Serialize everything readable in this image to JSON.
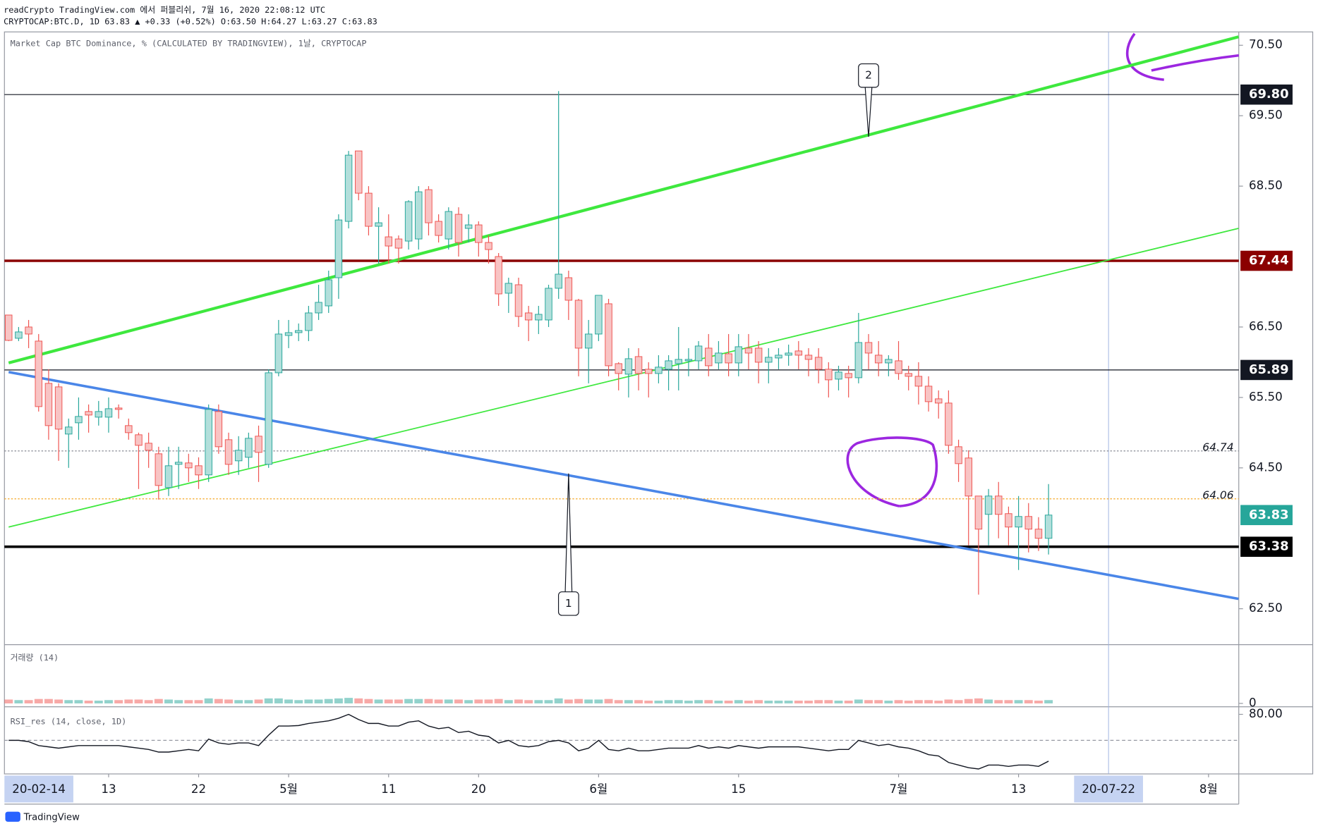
{
  "header": {
    "published": "readCrypto TradingView.com 에서 퍼블리쉬, 7월 16, 2020 22:08:12 UTC",
    "symbol": "CRYPTOCAP:BTC.D, 1D 63.83 ▲ +0.33 (+0.52%) O:63.50 H:64.27 L:63.27 C:63.83"
  },
  "footer": "TradingView",
  "chart_data": [
    {
      "type": "candlestick",
      "title": "Market Cap BTC Dominance, % (CALCULATED BY TRADINGVIEW), 1날, CRYPTOCAP",
      "x": [
        "2020-04-03",
        "2020-04-04",
        "2020-04-05",
        "2020-04-06",
        "2020-04-07",
        "2020-04-08",
        "2020-04-09",
        "2020-04-10",
        "2020-04-11",
        "2020-04-12",
        "2020-04-13",
        "2020-04-14",
        "2020-04-15",
        "2020-04-16",
        "2020-04-17",
        "2020-04-18",
        "2020-04-19",
        "2020-04-20",
        "2020-04-21",
        "2020-04-22",
        "2020-04-23",
        "2020-04-24",
        "2020-04-25",
        "2020-04-26",
        "2020-04-27",
        "2020-04-28",
        "2020-04-29",
        "2020-04-30",
        "2020-05-01",
        "2020-05-02",
        "2020-05-03",
        "2020-05-04",
        "2020-05-05",
        "2020-05-06",
        "2020-05-07",
        "2020-05-08",
        "2020-05-09",
        "2020-05-10",
        "2020-05-11",
        "2020-05-12",
        "2020-05-13",
        "2020-05-14",
        "2020-05-15",
        "2020-05-16",
        "2020-05-17",
        "2020-05-18",
        "2020-05-19",
        "2020-05-20",
        "2020-05-21",
        "2020-05-22",
        "2020-05-23",
        "2020-05-24",
        "2020-05-25",
        "2020-05-26",
        "2020-05-27",
        "2020-05-28",
        "2020-05-29",
        "2020-05-30",
        "2020-05-31",
        "2020-06-01",
        "2020-06-02",
        "2020-06-03",
        "2020-06-04",
        "2020-06-05",
        "2020-06-06",
        "2020-06-07",
        "2020-06-08",
        "2020-06-09",
        "2020-06-10",
        "2020-06-11",
        "2020-06-12",
        "2020-06-13",
        "2020-06-14",
        "2020-06-15",
        "2020-06-16",
        "2020-06-17",
        "2020-06-18",
        "2020-06-19",
        "2020-06-20",
        "2020-06-21",
        "2020-06-22",
        "2020-06-23",
        "2020-06-24",
        "2020-06-25",
        "2020-06-26",
        "2020-06-27",
        "2020-06-28",
        "2020-06-29",
        "2020-06-30",
        "2020-07-01",
        "2020-07-02",
        "2020-07-03",
        "2020-07-04",
        "2020-07-05",
        "2020-07-06",
        "2020-07-07",
        "2020-07-08",
        "2020-07-09",
        "2020-07-10",
        "2020-07-11",
        "2020-07-12",
        "2020-07-13",
        "2020-07-14",
        "2020-07-15",
        "2020-07-16"
      ],
      "open": [
        66.67,
        66.34,
        66.5,
        66.3,
        65.7,
        65.65,
        64.98,
        65.14,
        65.3,
        65.22,
        65.22,
        65.35,
        65.1,
        64.97,
        64.85,
        64.7,
        64.22,
        64.55,
        64.57,
        64.53,
        64.4,
        65.3,
        64.9,
        64.6,
        64.65,
        64.95,
        64.55,
        65.85,
        66.38,
        66.42,
        66.45,
        66.7,
        66.8,
        67.2,
        68.0,
        69.0,
        68.4,
        67.93,
        67.78,
        67.75,
        67.72,
        67.75,
        68.45,
        68.0,
        67.75,
        68.1,
        67.9,
        67.95,
        67.7,
        67.5,
        66.98,
        67.1,
        66.7,
        66.6,
        66.6,
        67.05,
        67.2,
        66.88,
        66.2,
        66.4,
        66.83,
        65.98,
        65.83,
        66.08,
        65.9,
        65.84,
        65.9,
        65.98,
        66.02,
        66.02,
        66.2,
        65.99,
        66.12,
        65.99,
        66.2,
        66.2,
        66.0,
        66.06,
        66.1,
        66.16,
        66.1,
        66.07,
        65.9,
        65.76,
        65.84,
        65.78,
        66.28,
        66.1,
        65.99,
        66.02,
        65.84,
        65.8,
        65.66,
        65.48,
        65.42,
        64.8,
        64.64,
        64.1,
        63.84,
        64.1,
        63.85,
        63.66,
        63.81,
        63.63,
        63.5
      ],
      "high": [
        66.67,
        66.5,
        66.6,
        66.4,
        65.9,
        65.7,
        65.2,
        65.5,
        65.4,
        65.45,
        65.5,
        65.4,
        65.2,
        65.0,
        65.0,
        64.8,
        64.8,
        64.8,
        64.7,
        64.65,
        65.4,
        65.4,
        65.0,
        64.95,
        65.0,
        65.1,
        65.9,
        66.6,
        66.6,
        66.55,
        66.8,
        67.1,
        67.3,
        68.1,
        69.0,
        69.0,
        68.5,
        68.2,
        68.1,
        67.8,
        68.3,
        68.5,
        68.5,
        68.1,
        68.2,
        68.2,
        68.1,
        68.0,
        67.8,
        67.55,
        67.2,
        67.2,
        66.8,
        66.8,
        67.1,
        69.85,
        67.3,
        66.9,
        66.6,
        66.95,
        66.9,
        66.0,
        66.2,
        66.2,
        66.0,
        66.1,
        66.1,
        66.5,
        66.2,
        66.3,
        66.4,
        66.3,
        66.4,
        66.4,
        66.4,
        66.3,
        66.2,
        66.2,
        66.25,
        66.3,
        66.2,
        66.2,
        66.0,
        65.95,
        65.95,
        66.7,
        66.4,
        66.3,
        66.1,
        66.3,
        65.95,
        66.0,
        65.8,
        65.6,
        65.6,
        64.9,
        64.75,
        64.1,
        64.2,
        64.3,
        63.95,
        64.1,
        64.0,
        63.8,
        64.27
      ],
      "low": [
        66.3,
        66.3,
        66.2,
        65.3,
        64.9,
        64.6,
        64.5,
        64.9,
        65.0,
        65.1,
        65.0,
        65.2,
        64.9,
        64.2,
        64.5,
        64.05,
        64.1,
        64.2,
        64.3,
        64.2,
        64.3,
        64.7,
        64.4,
        64.4,
        64.5,
        64.3,
        64.5,
        65.8,
        66.2,
        66.3,
        66.3,
        66.6,
        66.7,
        66.9,
        67.9,
        68.3,
        67.8,
        67.4,
        67.4,
        67.4,
        67.6,
        67.6,
        67.8,
        67.7,
        67.6,
        67.5,
        67.7,
        67.5,
        67.4,
        66.8,
        66.7,
        66.5,
        66.3,
        66.4,
        66.5,
        66.9,
        66.6,
        65.8,
        65.7,
        66.3,
        65.8,
        65.6,
        65.5,
        65.6,
        65.5,
        65.7,
        65.6,
        65.6,
        65.8,
        65.9,
        65.8,
        65.9,
        65.8,
        65.8,
        65.9,
        65.7,
        65.7,
        65.9,
        65.95,
        65.9,
        65.8,
        65.7,
        65.5,
        65.6,
        65.5,
        65.7,
        65.9,
        65.8,
        65.8,
        65.75,
        65.6,
        65.4,
        65.3,
        65.2,
        64.7,
        64.3,
        63.4,
        62.7,
        63.4,
        63.5,
        63.4,
        63.05,
        63.3,
        63.32,
        63.27
      ],
      "close": [
        66.31,
        66.43,
        66.4,
        65.37,
        65.1,
        65.05,
        65.08,
        65.23,
        65.25,
        65.3,
        65.34,
        65.33,
        65.0,
        64.82,
        64.75,
        64.25,
        64.53,
        64.58,
        64.5,
        64.4,
        65.33,
        64.8,
        64.55,
        64.75,
        64.92,
        64.72,
        65.85,
        66.4,
        66.42,
        66.45,
        66.7,
        66.85,
        67.17,
        68.02,
        68.94,
        68.4,
        67.93,
        67.98,
        67.65,
        67.62,
        68.28,
        68.42,
        67.98,
        67.8,
        68.14,
        67.7,
        67.95,
        67.7,
        67.6,
        66.97,
        67.12,
        66.65,
        66.6,
        66.68,
        67.05,
        67.25,
        66.88,
        66.2,
        66.4,
        66.95,
        65.95,
        65.84,
        66.05,
        65.84,
        65.84,
        65.93,
        66.02,
        66.04,
        66.04,
        66.23,
        65.95,
        66.13,
        65.99,
        66.22,
        66.13,
        66.0,
        66.07,
        66.1,
        66.13,
        66.1,
        66.04,
        65.9,
        65.75,
        65.86,
        65.78,
        66.28,
        66.13,
        65.99,
        66.04,
        65.84,
        65.8,
        65.66,
        65.44,
        65.42,
        64.82,
        64.56,
        64.1,
        63.63,
        64.1,
        63.84,
        63.66,
        63.81,
        63.63,
        63.5,
        63.83
      ],
      "up_color": "#26a69a",
      "up_fill": "#b2dfdb",
      "down_color": "#ef5350",
      "down_fill": "#f8c4c4",
      "ylim": [
        61.99,
        70.69
      ],
      "grid": false,
      "yticks": [
        {
          "value": 62.5,
          "label": "62.50"
        },
        {
          "value": 64.5,
          "label": "64.50"
        },
        {
          "value": 65.5,
          "label": "65.50"
        },
        {
          "value": 66.5,
          "label": "66.50"
        },
        {
          "value": 68.5,
          "label": "68.50"
        },
        {
          "value": 69.5,
          "label": "69.50"
        },
        {
          "value": 70.5,
          "label": "70.50"
        }
      ],
      "xticks": [
        {
          "value": "2020-04-13",
          "label": "13"
        },
        {
          "value": "2020-04-22",
          "label": "22"
        },
        {
          "value": "2020-05-01",
          "label": "5월"
        },
        {
          "value": "2020-05-11",
          "label": "11"
        },
        {
          "value": "2020-05-20",
          "label": "20"
        },
        {
          "value": "2020-06-01",
          "label": "6월"
        },
        {
          "value": "2020-06-15",
          "label": "15"
        },
        {
          "value": "2020-07-01",
          "label": "7월"
        },
        {
          "value": "2020-07-13",
          "label": "13"
        },
        {
          "value": "2020-08-01",
          "label": "8월"
        }
      ],
      "levels": [
        {
          "value": 69.8,
          "label": "69.80",
          "color": "#131722",
          "width": 1,
          "style": "box"
        },
        {
          "value": 67.44,
          "label": "67.44",
          "color": "#8b0000",
          "width": 3,
          "style": "box"
        },
        {
          "value": 65.89,
          "label": "65.89",
          "color": "#131722",
          "width": 1,
          "style": "box"
        },
        {
          "value": 64.74,
          "label": "64.74",
          "color": "#787b86",
          "width": 1,
          "style": "inline"
        },
        {
          "value": 64.06,
          "label": "64.06",
          "color": "#f5a623",
          "width": 1,
          "style": "inline"
        },
        {
          "value": 63.38,
          "label": "63.38",
          "color": "#000000",
          "width": 3,
          "style": "box"
        }
      ],
      "last_price": {
        "value": 63.83,
        "label": "63.83",
        "color": "#26a69a"
      },
      "trend_lines": [
        {
          "points": [
            [
              "2020-04-03",
              65.99
            ],
            [
              "2020-08-04",
              70.62
            ]
          ],
          "color": "#3ee83e",
          "width": 3.5
        },
        {
          "points": [
            [
              "2020-04-03",
              63.66
            ],
            [
              "2020-08-04",
              67.9
            ]
          ],
          "color": "#3ee83e",
          "width": 1.5
        },
        {
          "points": [
            [
              "2020-04-03",
              65.86
            ],
            [
              "2020-08-04",
              62.64
            ]
          ],
          "color": "#4a86e8",
          "width": 3
        }
      ],
      "annotations": [
        {
          "text": "1",
          "x": "2020-05-29",
          "y": 64.42,
          "side": "below"
        },
        {
          "text": "2",
          "x": "2020-06-28",
          "y": 69.2,
          "side": "above"
        }
      ],
      "crosshair": {
        "x": "2020-07-22",
        "label": "20-07-22"
      },
      "start_label": "20-02-14"
    },
    {
      "type": "bar",
      "title": "거래량 (14)",
      "ylim": [
        0,
        10
      ],
      "yticks": [
        0
      ],
      "values": [
        0.7,
        0.6,
        0.6,
        0.8,
        0.8,
        0.7,
        0.6,
        0.6,
        0.5,
        0.5,
        0.6,
        0.6,
        0.7,
        0.7,
        0.6,
        0.8,
        0.7,
        0.6,
        0.6,
        0.6,
        0.9,
        0.8,
        0.7,
        0.6,
        0.6,
        0.7,
        0.9,
        0.9,
        0.7,
        0.6,
        0.7,
        0.7,
        0.8,
        0.9,
        1.0,
        0.9,
        0.8,
        0.7,
        0.7,
        0.7,
        0.8,
        0.8,
        0.8,
        0.7,
        0.7,
        0.7,
        0.6,
        0.7,
        0.7,
        0.8,
        0.6,
        0.7,
        0.6,
        0.6,
        0.6,
        0.9,
        0.7,
        0.8,
        0.7,
        0.7,
        0.8,
        0.6,
        0.6,
        0.6,
        0.5,
        0.5,
        0.6,
        0.6,
        0.5,
        0.6,
        0.6,
        0.5,
        0.5,
        0.6,
        0.5,
        0.6,
        0.5,
        0.5,
        0.5,
        0.5,
        0.5,
        0.6,
        0.6,
        0.5,
        0.5,
        0.7,
        0.6,
        0.6,
        0.5,
        0.6,
        0.5,
        0.6,
        0.6,
        0.5,
        0.7,
        0.6,
        0.8,
        0.9,
        0.7,
        0.6,
        0.6,
        0.6,
        0.6,
        0.5,
        0.6
      ]
    },
    {
      "type": "line",
      "title": "RSI_res (14, close, 1D)",
      "ylim": [
        57.1,
        81.94
      ],
      "yticks": [
        {
          "value": 80,
          "label": "80.00"
        }
      ],
      "levels": [
        {
          "value": 70
        }
      ],
      "color": "#131722",
      "values": [
        70,
        70,
        69.5,
        68,
        67.5,
        67,
        67.5,
        68,
        68,
        68,
        68,
        68,
        67.5,
        67,
        66.5,
        65.5,
        65.5,
        66,
        66.5,
        66,
        70.5,
        69,
        68.5,
        69,
        69,
        68,
        72,
        75.5,
        75.5,
        75.7,
        76.5,
        77,
        77.5,
        78.5,
        80,
        78,
        76.5,
        76.5,
        75.5,
        75.5,
        77,
        77.5,
        75.5,
        74.5,
        75,
        73,
        73.5,
        72,
        71.5,
        69,
        70,
        68,
        67.5,
        68,
        69.5,
        70,
        69,
        66,
        67,
        70,
        66.5,
        66,
        67,
        66,
        66,
        66.5,
        67,
        67,
        67,
        68,
        67,
        67.5,
        67,
        68,
        67.5,
        67,
        67.5,
        67.5,
        67.5,
        67.5,
        67,
        66.5,
        66,
        66.5,
        66.5,
        70,
        69,
        68,
        68.5,
        67.5,
        67,
        66,
        64.5,
        64,
        61.5,
        60.5,
        59.5,
        59,
        60.5,
        60.5,
        60,
        60.5,
        60.5,
        60,
        62
      ]
    }
  ]
}
